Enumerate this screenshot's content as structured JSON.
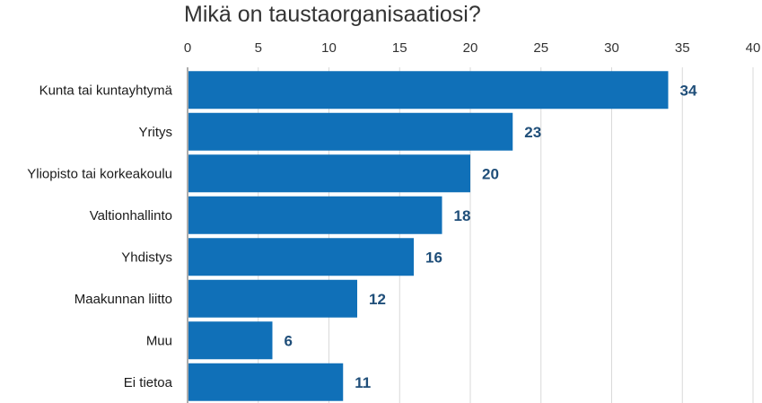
{
  "chart_data": {
    "type": "bar",
    "orientation": "horizontal",
    "title": "Mikä on taustaorganisaatiosi?",
    "categories": [
      "Kunta tai kuntayhtymä",
      "Yritys",
      "Yliopisto tai korkeakoulu",
      "Valtionhallinto",
      "Yhdistys",
      "Maakunnan liitto",
      "Muu",
      "Ei tietoa"
    ],
    "values": [
      34,
      23,
      20,
      18,
      16,
      12,
      6,
      11
    ],
    "xlim": [
      0,
      40
    ],
    "x_ticks": [
      0,
      5,
      10,
      15,
      20,
      25,
      30,
      35,
      40
    ],
    "x_axis_position": "top",
    "grid": "vertical",
    "data_labels": true,
    "legend": "none"
  },
  "colors": {
    "bar": "#1070B8",
    "value_label": "#1F4E79",
    "grid": "#d9d9d9",
    "axis_line": "#595959"
  }
}
